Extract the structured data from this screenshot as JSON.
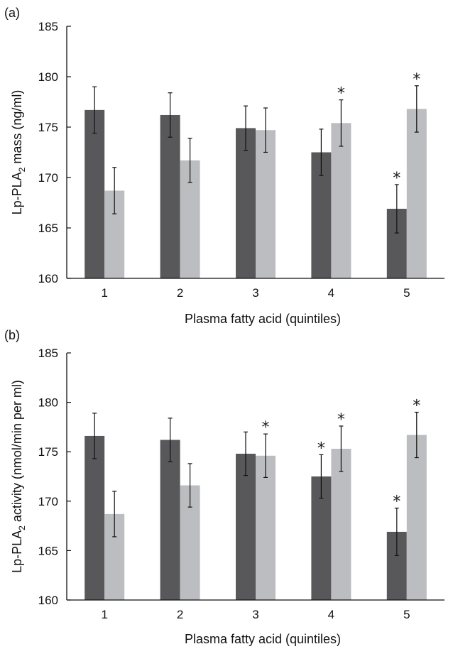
{
  "chart_data": [
    {
      "type": "bar",
      "panel_label": "(a)",
      "categories": [
        "1",
        "2",
        "3",
        "4",
        "5"
      ],
      "xlabel": "Plasma fatty acid (quintiles)",
      "ylabel_parts": [
        "Lp-PLA",
        "2",
        " mass (ng/ml)"
      ],
      "ylim": [
        160,
        185
      ],
      "yticks": [
        "160",
        "165",
        "170",
        "175",
        "180",
        "185"
      ],
      "colors": [
        "#58585a",
        "#bcbdc0"
      ],
      "series": [
        {
          "values": [
            176.7,
            176.2,
            174.9,
            172.5,
            166.9
          ],
          "errors": [
            2.3,
            2.2,
            2.2,
            2.3,
            2.4
          ],
          "significant": [
            false,
            false,
            false,
            false,
            true
          ]
        },
        {
          "values": [
            168.7,
            171.7,
            174.7,
            175.4,
            176.8
          ],
          "errors": [
            2.3,
            2.2,
            2.2,
            2.3,
            2.3
          ],
          "significant": [
            false,
            false,
            false,
            true,
            true
          ]
        }
      ],
      "marker": "*"
    },
    {
      "type": "bar",
      "panel_label": "(b)",
      "categories": [
        "1",
        "2",
        "3",
        "4",
        "5"
      ],
      "xlabel": "Plasma fatty acid (quintiles)",
      "ylabel_parts": [
        "Lp-PLA",
        "2",
        " activity (nmol/min per ml)"
      ],
      "ylim": [
        160,
        185
      ],
      "yticks": [
        "160",
        "165",
        "170",
        "175",
        "180",
        "185"
      ],
      "colors": [
        "#58585a",
        "#bcbdc0"
      ],
      "series": [
        {
          "values": [
            176.6,
            176.2,
            174.8,
            172.5,
            166.9
          ],
          "errors": [
            2.3,
            2.2,
            2.2,
            2.2,
            2.4
          ],
          "significant": [
            false,
            false,
            false,
            true,
            true
          ]
        },
        {
          "values": [
            168.7,
            171.6,
            174.6,
            175.3,
            176.7
          ],
          "errors": [
            2.3,
            2.2,
            2.2,
            2.3,
            2.3
          ],
          "significant": [
            false,
            false,
            true,
            true,
            true
          ]
        }
      ],
      "marker": "*"
    }
  ]
}
